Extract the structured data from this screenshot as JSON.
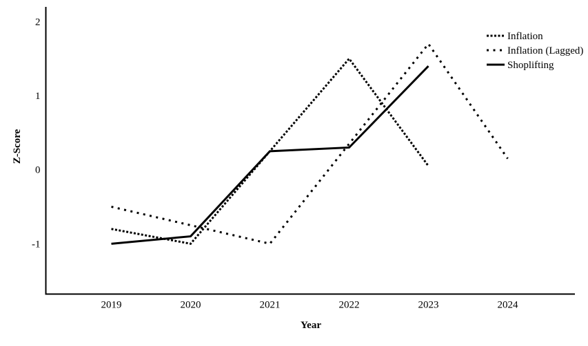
{
  "chart_data": {
    "type": "line",
    "xlabel": "Year",
    "ylabel": "Z-Score",
    "categories": [
      "2019",
      "2020",
      "2021",
      "2022",
      "2023",
      "2024"
    ],
    "yticks": [
      -1,
      0,
      1,
      2
    ],
    "ylim": [
      -1.68,
      2.2
    ],
    "grid": false,
    "legend_position": "top-right",
    "background_color": "#ffffff",
    "ink_color": "#000000",
    "series": [
      {
        "name": "Inflation",
        "style": "dense-dotted",
        "x": [
          2019,
          2020,
          2021,
          2022,
          2023
        ],
        "values": [
          -0.8,
          -1.0,
          0.25,
          1.5,
          0.05
        ]
      },
      {
        "name": "Inflation (Lagged)",
        "style": "sparse-dotted",
        "x": [
          2019,
          2020,
          2021,
          2022,
          2023,
          2024
        ],
        "values": [
          -0.5,
          -0.75,
          -1.0,
          0.35,
          1.7,
          0.15
        ]
      },
      {
        "name": "Shoplifting",
        "style": "solid",
        "x": [
          2019,
          2020,
          2021,
          2022,
          2023
        ],
        "values": [
          -1.0,
          -0.9,
          0.25,
          0.3,
          1.4
        ]
      }
    ]
  }
}
